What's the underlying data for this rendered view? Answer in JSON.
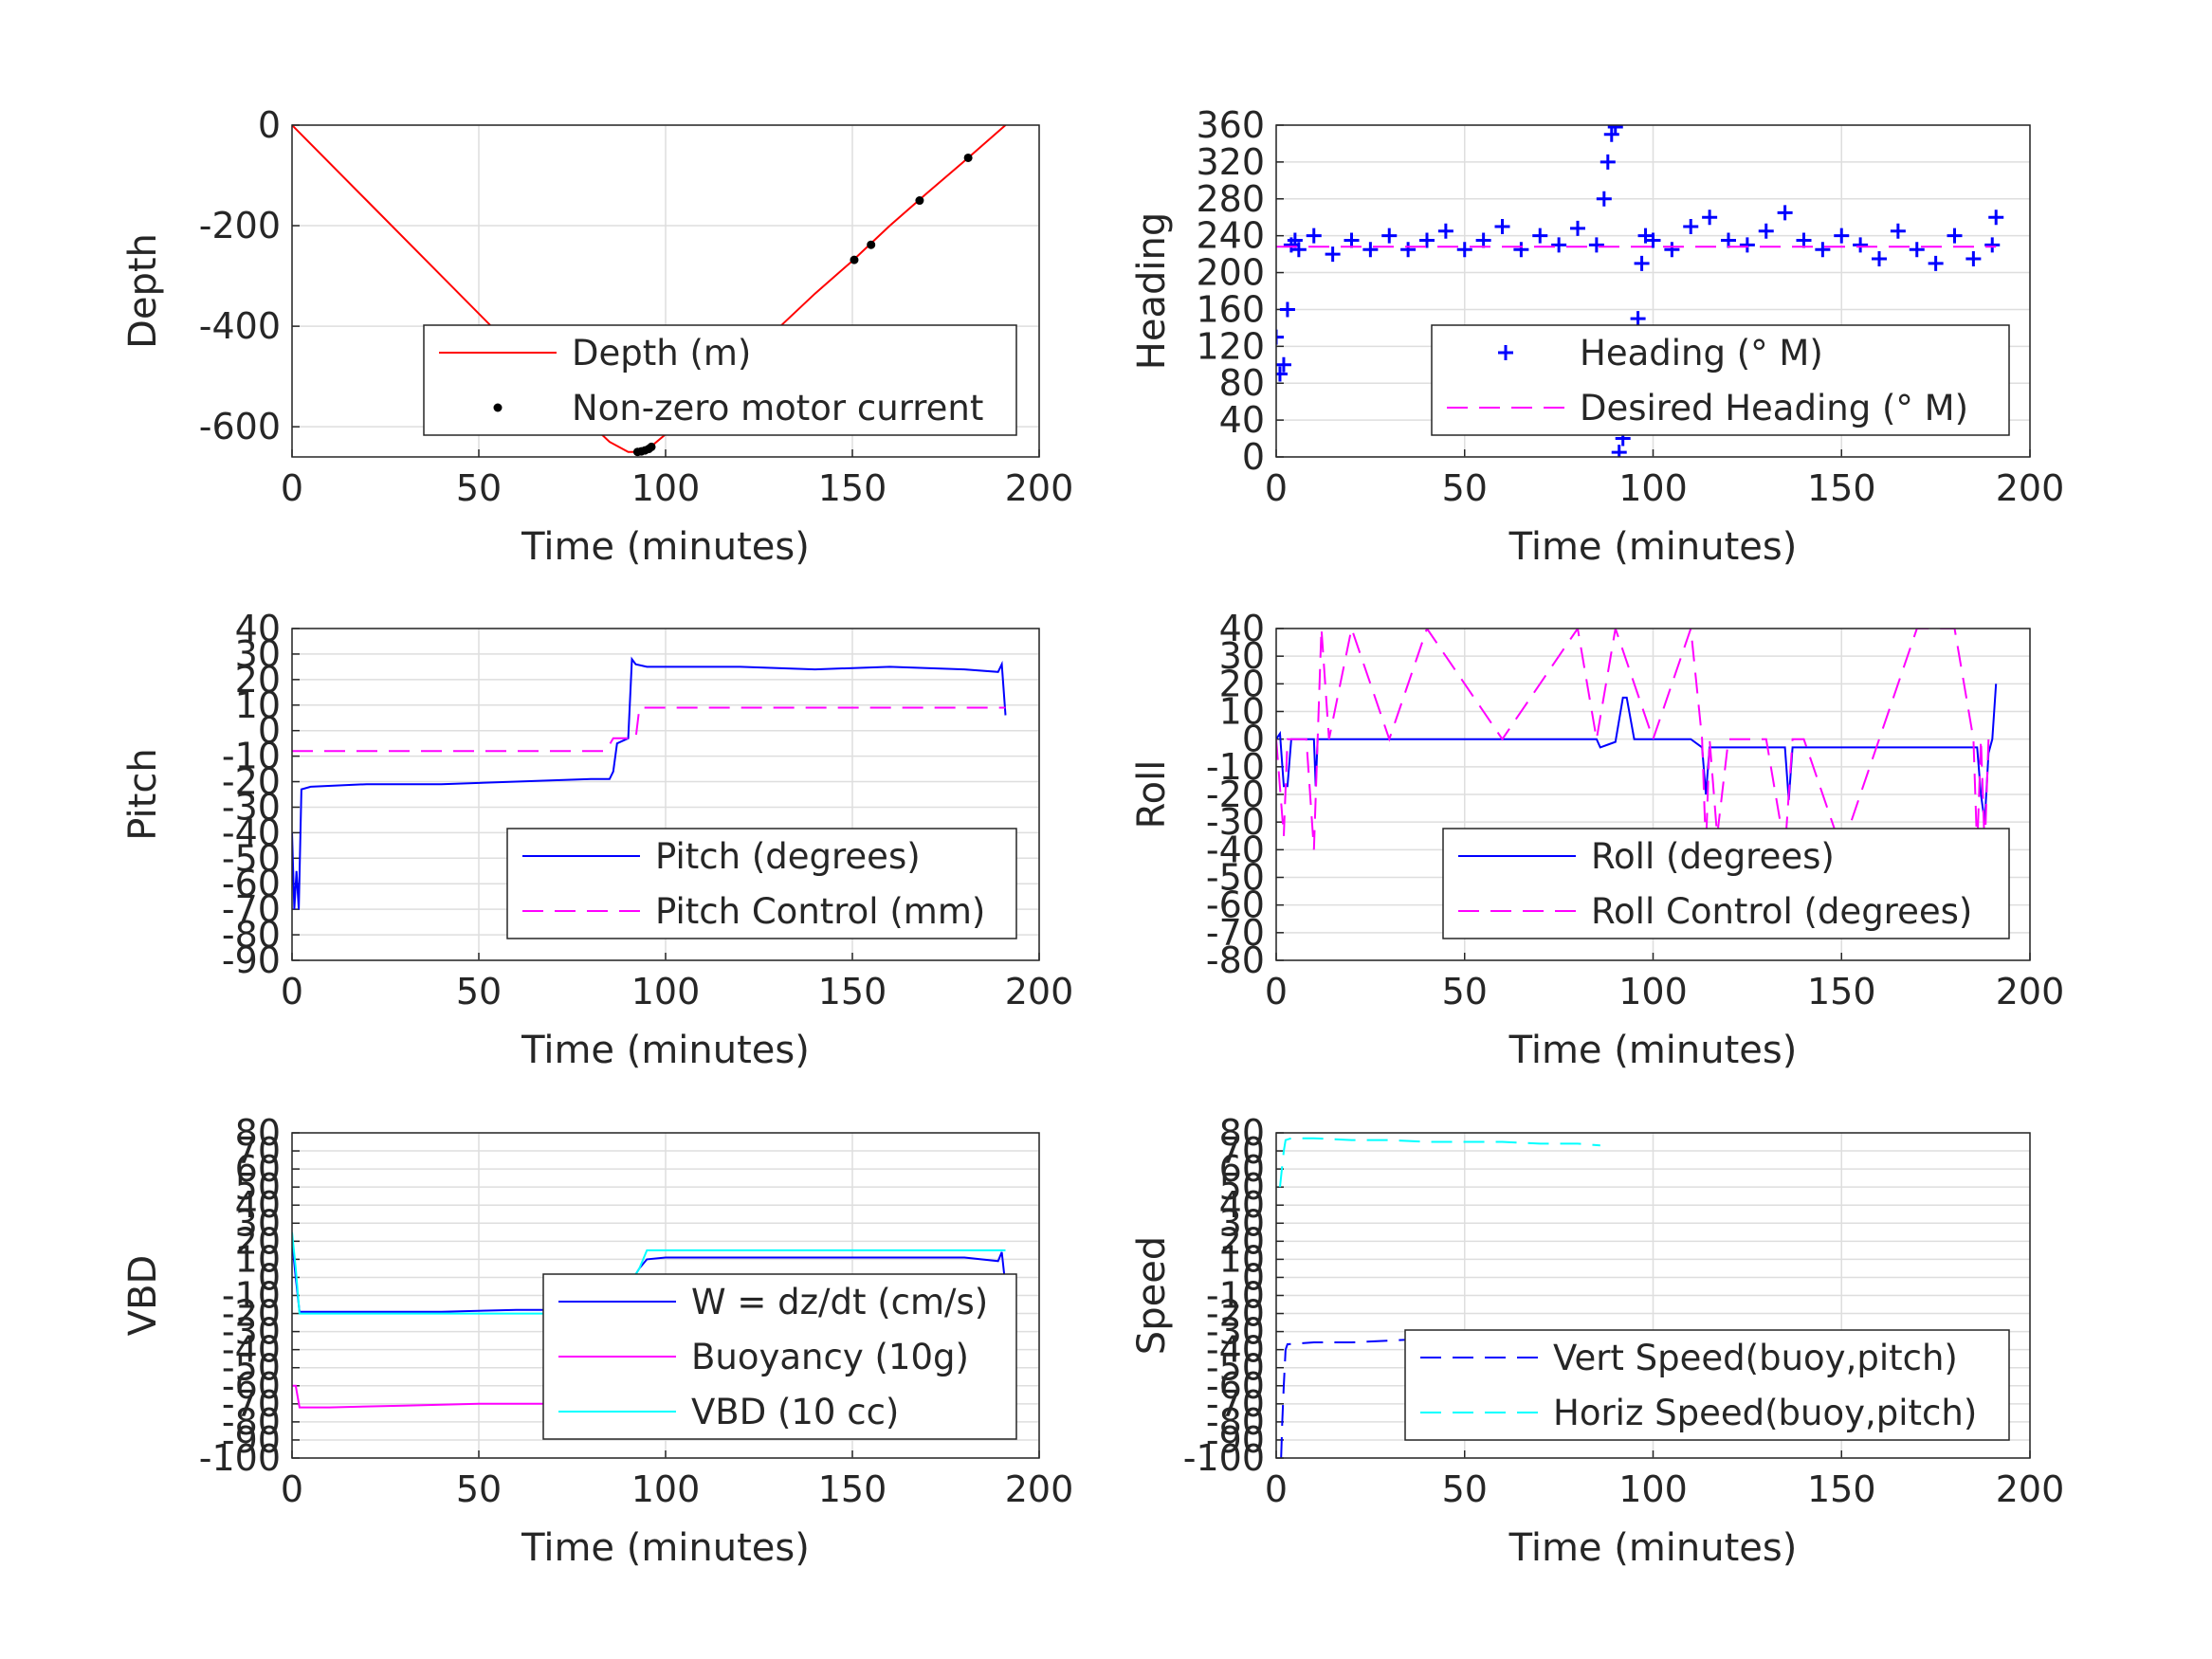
{
  "chart_data": [
    {
      "id": "depth",
      "type": "line",
      "xlabel": "Time (minutes)",
      "ylabel": "Depth",
      "xlim": [
        0,
        200
      ],
      "ylim": [
        -660,
        0
      ],
      "xticks": [
        "0",
        "50",
        "100",
        "150",
        "200"
      ],
      "yticks": [
        "0",
        "-200",
        "-400",
        "-600"
      ],
      "grid": true,
      "legend_position": "bottom-right",
      "series": [
        {
          "name": "Depth (m)",
          "color": "#ff0000",
          "style": "solid",
          "x": [
            0,
            20,
            40,
            60,
            75,
            85,
            90,
            93,
            96,
            100,
            110,
            120,
            130,
            140,
            150,
            160,
            170,
            181,
            191
          ],
          "y": [
            0,
            -150,
            -300,
            -450,
            -560,
            -630,
            -650,
            -650,
            -640,
            -615,
            -545,
            -475,
            -405,
            -335,
            -270,
            -200,
            -135,
            -65,
            0
          ]
        },
        {
          "name": "Non-zero motor current",
          "color": "#000000",
          "style": "dots",
          "x": [
            92.5,
            93.5,
            94.5,
            95.5,
            96.2,
            150.5,
            155,
            168,
            181
          ],
          "y": [
            -650,
            -649,
            -647,
            -644,
            -640,
            -268,
            -238,
            -150,
            -65
          ]
        }
      ]
    },
    {
      "id": "heading",
      "type": "scatter",
      "xlabel": "Time (minutes)",
      "ylabel": "Heading",
      "xlim": [
        0,
        200
      ],
      "ylim": [
        0,
        360
      ],
      "xticks": [
        "0",
        "50",
        "100",
        "150",
        "200"
      ],
      "yticks": [
        "0",
        "40",
        "80",
        "120",
        "160",
        "200",
        "240",
        "280",
        "320",
        "360"
      ],
      "grid": true,
      "legend_position": "bottom-right",
      "series": [
        {
          "name": "Heading (° M)",
          "color": "#0000ff",
          "style": "plus",
          "x": [
            0,
            1,
            2,
            3,
            4,
            5,
            6,
            10,
            15,
            20,
            25,
            30,
            35,
            40,
            45,
            50,
            55,
            60,
            65,
            70,
            75,
            80,
            85,
            87,
            88,
            89,
            90,
            91,
            92,
            93,
            94,
            95,
            96,
            97,
            98,
            100,
            105,
            110,
            115,
            120,
            125,
            130,
            135,
            140,
            145,
            150,
            155,
            160,
            165,
            170,
            175,
            180,
            185,
            190,
            191
          ],
          "y": [
            130,
            90,
            100,
            160,
            230,
            235,
            225,
            240,
            220,
            235,
            225,
            240,
            225,
            235,
            245,
            225,
            235,
            250,
            225,
            240,
            230,
            248,
            230,
            280,
            320,
            350,
            358,
            5,
            20,
            45,
            60,
            70,
            150,
            210,
            240,
            235,
            225,
            250,
            260,
            235,
            230,
            245,
            265,
            235,
            225,
            240,
            230,
            215,
            245,
            225,
            210,
            240,
            215,
            230,
            260
          ]
        },
        {
          "name": "Desired Heading (° M)",
          "color": "#ff00ff",
          "style": "dashed",
          "x": [
            0,
            191
          ],
          "y": [
            228,
            228
          ]
        }
      ]
    },
    {
      "id": "pitch",
      "type": "line",
      "xlabel": "Time (minutes)",
      "ylabel": "Pitch",
      "xlim": [
        0,
        200
      ],
      "ylim": [
        -90,
        40
      ],
      "xticks": [
        "0",
        "50",
        "100",
        "150",
        "200"
      ],
      "yticks": [
        "40",
        "30",
        "20",
        "10",
        "0",
        "-10",
        "-20",
        "-30",
        "-40",
        "-50",
        "-60",
        "-70",
        "-80",
        "-90"
      ],
      "grid": true,
      "legend_position": "bottom-right",
      "series": [
        {
          "name": "Pitch (degrees)",
          "color": "#0000ff",
          "style": "solid",
          "x": [
            0,
            0.6,
            1.2,
            1.8,
            2.5,
            5,
            20,
            40,
            60,
            80,
            85,
            86,
            87,
            90,
            91,
            92,
            95,
            100,
            120,
            140,
            160,
            180,
            189,
            190,
            191
          ],
          "y": [
            -40,
            -70,
            -55,
            -70,
            -23,
            -22,
            -21,
            -21,
            -20,
            -19,
            -19,
            -16,
            -5,
            -3,
            28,
            26,
            25,
            25,
            25,
            24,
            25,
            24,
            23,
            26,
            6
          ]
        },
        {
          "name": "Pitch Control (mm)",
          "color": "#ff00ff",
          "style": "dashed",
          "x": [
            0,
            84,
            86,
            92,
            93,
            191
          ],
          "y": [
            -8,
            -8,
            -3,
            -3,
            9,
            9
          ]
        }
      ]
    },
    {
      "id": "roll",
      "type": "line",
      "xlabel": "Time (minutes)",
      "ylabel": "Roll",
      "xlim": [
        0,
        200
      ],
      "ylim": [
        -80,
        40
      ],
      "xticks": [
        "0",
        "50",
        "100",
        "150",
        "200"
      ],
      "yticks": [
        "40",
        "30",
        "20",
        "10",
        "0",
        "-10",
        "-20",
        "-30",
        "-40",
        "-50",
        "-60",
        "-70",
        "-80"
      ],
      "grid": true,
      "legend_position": "bottom-right",
      "series": [
        {
          "name": "Roll (degrees)",
          "color": "#0000ff",
          "style": "solid",
          "x": [
            0,
            1,
            2,
            3,
            4,
            5,
            10,
            10.5,
            11,
            20,
            30,
            40,
            50,
            60,
            70,
            80,
            85,
            86,
            88,
            90,
            92,
            93,
            95,
            98,
            100,
            110,
            113,
            114,
            115,
            120,
            130,
            135,
            136,
            137,
            140,
            150,
            160,
            170,
            180,
            186,
            187,
            188,
            189,
            190,
            191
          ],
          "y": [
            0,
            2,
            -17,
            -17,
            0,
            0,
            0,
            -17,
            0,
            0,
            0,
            0,
            0,
            0,
            0,
            0,
            0,
            -3,
            -2,
            -1,
            15,
            15,
            0,
            0,
            0,
            0,
            -3,
            -20,
            -3,
            -3,
            -3,
            -3,
            -22,
            -3,
            -3,
            -3,
            -3,
            -3,
            -3,
            -3,
            -20,
            -30,
            -5,
            0,
            20
          ]
        },
        {
          "name": "Roll Control (degrees)",
          "color": "#ff00ff",
          "style": "dashed",
          "x": [
            0,
            2,
            3,
            8,
            10,
            12,
            14,
            20,
            30,
            40,
            60,
            80,
            85,
            90,
            100,
            110,
            113,
            114,
            115,
            117,
            120,
            130,
            135,
            137,
            140,
            150,
            160,
            170,
            180,
            185,
            186,
            187,
            188,
            189,
            190,
            191
          ],
          "y": [
            0,
            -35,
            0,
            0,
            -40,
            40,
            0,
            40,
            0,
            40,
            0,
            40,
            0,
            40,
            0,
            40,
            0,
            -40,
            0,
            -35,
            0,
            0,
            -40,
            0,
            0,
            -40,
            0,
            40,
            40,
            0,
            -40,
            0,
            -40,
            0,
            0,
            0
          ]
        }
      ]
    },
    {
      "id": "vbd",
      "type": "line",
      "xlabel": "Time (minutes)",
      "ylabel": "VBD",
      "xlim": [
        0,
        200
      ],
      "ylim": [
        -100,
        80
      ],
      "xticks": [
        "0",
        "50",
        "100",
        "150",
        "200"
      ],
      "yticks": [
        "80",
        "70",
        "60",
        "50",
        "40",
        "30",
        "20",
        "10",
        "0",
        "-10",
        "-20",
        "-30",
        "-40",
        "-50",
        "-60",
        "-70",
        "-80",
        "-90",
        "-100"
      ],
      "grid": true,
      "legend_position": "bottom-right",
      "series": [
        {
          "name": "W = dz/dt (cm/s)",
          "color": "#0000ff",
          "style": "solid",
          "x": [
            0,
            1,
            2,
            5,
            20,
            40,
            60,
            80,
            85,
            87,
            90,
            93,
            95,
            100,
            120,
            140,
            160,
            180,
            189,
            190,
            191
          ],
          "y": [
            20,
            0,
            -19,
            -19,
            -19,
            -19,
            -18,
            -18,
            -18,
            -15,
            -5,
            5,
            10,
            11,
            11,
            11,
            11,
            11,
            9,
            14,
            -5
          ]
        },
        {
          "name": "Buoyancy (10g)",
          "color": "#ff00ff",
          "style": "solid",
          "x": [
            0,
            1,
            2,
            10,
            30,
            50,
            70,
            85
          ],
          "y": [
            -60,
            -60,
            -72,
            -72,
            -71,
            -70,
            -70,
            -70
          ]
        },
        {
          "name": "VBD (10 cc)",
          "color": "#00ffff",
          "style": "solid",
          "x": [
            0,
            1,
            2,
            5,
            20,
            40,
            60,
            80,
            85,
            88,
            90,
            93,
            95,
            100,
            120,
            140,
            160,
            180,
            191
          ],
          "y": [
            25,
            5,
            -20,
            -20,
            -20,
            -20,
            -20,
            -20,
            -20,
            -12,
            -5,
            5,
            15,
            15,
            15,
            15,
            15,
            15,
            15
          ]
        }
      ]
    },
    {
      "id": "speed",
      "type": "line",
      "xlabel": "Time (minutes)",
      "ylabel": "Speed",
      "xlim": [
        0,
        200
      ],
      "ylim": [
        -100,
        80
      ],
      "xticks": [
        "0",
        "50",
        "100",
        "150",
        "200"
      ],
      "yticks": [
        "80",
        "70",
        "60",
        "50",
        "40",
        "30",
        "20",
        "10",
        "0",
        "-10",
        "-20",
        "-30",
        "-40",
        "-50",
        "-60",
        "-70",
        "-80",
        "-90",
        "-100"
      ],
      "grid": true,
      "legend_position": "bottom-right",
      "series": [
        {
          "name": "Vert Speed(buoy,pitch)",
          "color": "#0000ff",
          "style": "dashed",
          "x": [
            1.3,
            1.6,
            2,
            2.5,
            3,
            10,
            20,
            30,
            40,
            50,
            60,
            70,
            80,
            86
          ],
          "y": [
            -100,
            -80,
            -60,
            -40,
            -37,
            -36,
            -36,
            -35,
            -34,
            -34,
            -33,
            -33,
            -32,
            -32
          ]
        },
        {
          "name": "Horiz Speed(buoy,pitch)",
          "color": "#00ffff",
          "style": "dashed",
          "x": [
            1,
            1.5,
            2,
            2.5,
            4,
            10,
            20,
            30,
            40,
            50,
            60,
            70,
            80,
            86
          ],
          "y": [
            50,
            60,
            70,
            76,
            77,
            77,
            76,
            76,
            75,
            75,
            75,
            74,
            74,
            73
          ]
        }
      ]
    }
  ]
}
